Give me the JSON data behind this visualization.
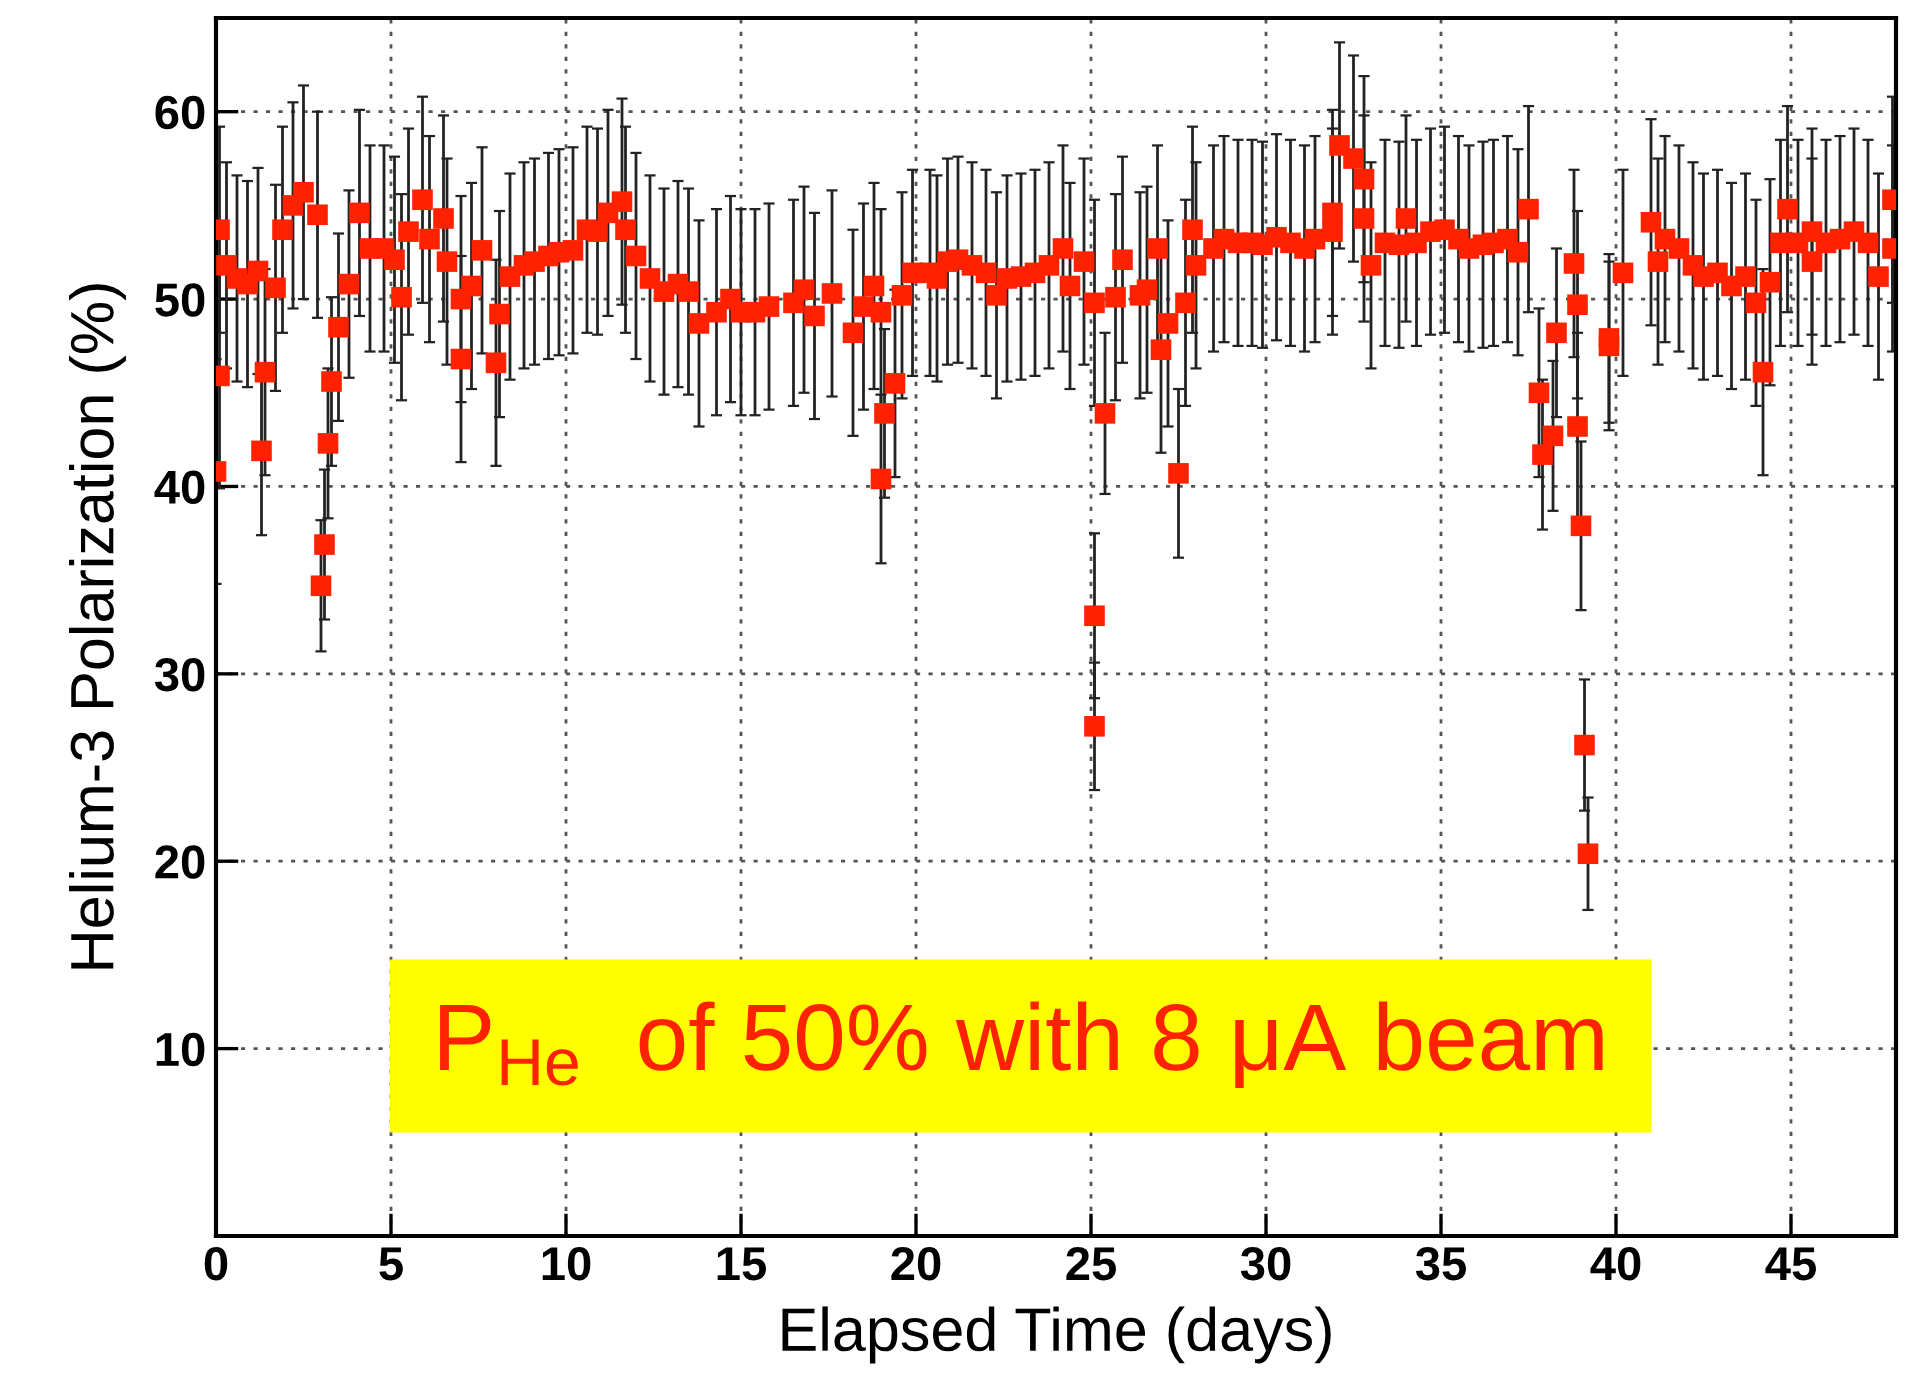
{
  "chart_data": {
    "type": "scatter",
    "xlabel": "Elapsed Time (days)",
    "ylabel": "Helium-3 Polarization (%)",
    "annotations": [
      "P$_{He}$  of 50% with 8 μA beam"
    ],
    "xlim": [
      0,
      48
    ],
    "xticks": [
      0,
      5,
      10,
      15,
      20,
      25,
      30,
      35,
      40,
      45
    ],
    "ylim": [
      0,
      65
    ],
    "yticks": [
      10,
      20,
      30,
      40,
      50,
      60
    ],
    "grid": true,
    "marker": "square",
    "series": [
      {
        "color": "#ff2200",
        "x": [
          0.0,
          0.1,
          0.1,
          0.3,
          0.6,
          0.9,
          1.2,
          1.4,
          1.3,
          1.7,
          1.9,
          2.2,
          2.5,
          2.9,
          3.0,
          3.1,
          3.2,
          3.3,
          3.5,
          3.8,
          4.1,
          4.4,
          4.8,
          5.1,
          5.3,
          5.5,
          5.9,
          6.1,
          6.5,
          6.6,
          7.0,
          7.0,
          7.3,
          7.6,
          8.0,
          8.1,
          8.4,
          8.8,
          9.1,
          9.5,
          9.8,
          10.2,
          10.6,
          10.9,
          11.2,
          11.6,
          11.7,
          12.0,
          12.4,
          12.8,
          13.2,
          13.5,
          13.8,
          14.3,
          14.7,
          15.0,
          15.4,
          15.8,
          16.5,
          16.8,
          17.1,
          17.6,
          18.2,
          18.5,
          18.8,
          19.0,
          19.0,
          19.1,
          19.4,
          19.6,
          19.9,
          20.4,
          20.6,
          20.9,
          21.2,
          21.6,
          22.0,
          22.3,
          22.6,
          23.0,
          23.4,
          23.8,
          24.2,
          24.4,
          24.8,
          25.1,
          25.1,
          25.1,
          25.4,
          25.7,
          25.9,
          26.4,
          26.6,
          26.9,
          27.0,
          27.2,
          27.5,
          27.7,
          27.9,
          28.0,
          28.5,
          28.8,
          29.2,
          29.6,
          29.9,
          30.3,
          30.7,
          31.1,
          31.4,
          31.9,
          31.9,
          32.1,
          32.5,
          32.8,
          32.8,
          33.0,
          33.4,
          33.8,
          34.0,
          34.3,
          34.7,
          35.1,
          35.5,
          35.8,
          36.2,
          36.5,
          36.9,
          37.2,
          37.5,
          37.8,
          37.9,
          38.2,
          38.3,
          38.8,
          38.9,
          38.9,
          39.0,
          39.1,
          39.2,
          39.8,
          39.8,
          40.2,
          41.0,
          41.2,
          41.4,
          41.8,
          42.2,
          42.5,
          42.9,
          43.3,
          43.7,
          44.0,
          44.2,
          44.4,
          44.7,
          44.9,
          45.2,
          45.6,
          45.6,
          46.0,
          46.4,
          46.8,
          47.2,
          47.5,
          47.9,
          47.9
        ],
        "values": [
          40.8,
          45.9,
          53.7,
          51.8,
          51.1,
          50.8,
          51.5,
          46.1,
          41.9,
          50.6,
          53.7,
          55.0,
          55.7,
          54.5,
          34.7,
          36.9,
          42.3,
          45.6,
          48.5,
          50.8,
          54.6,
          52.7,
          52.7,
          52.1,
          50.1,
          53.6,
          55.3,
          53.2,
          54.3,
          52.0,
          50.0,
          46.8,
          50.7,
          52.6,
          46.6,
          49.2,
          51.2,
          51.8,
          52.0,
          52.3,
          52.5,
          52.6,
          53.7,
          53.6,
          54.6,
          55.2,
          53.7,
          52.3,
          51.1,
          50.4,
          50.8,
          50.4,
          48.7,
          49.3,
          50.0,
          49.3,
          49.3,
          49.6,
          49.8,
          50.5,
          49.1,
          50.3,
          48.2,
          49.6,
          50.7,
          49.3,
          40.4,
          43.9,
          45.5,
          50.2,
          51.4,
          51.4,
          51.1,
          52.0,
          52.1,
          51.8,
          51.4,
          50.2,
          51.1,
          51.2,
          51.4,
          51.8,
          52.7,
          50.7,
          52.0,
          49.8,
          33.1,
          27.2,
          43.9,
          50.1,
          52.1,
          50.2,
          50.5,
          52.7,
          47.3,
          48.7,
          40.7,
          49.8,
          53.7,
          51.8,
          52.7,
          53.2,
          53.0,
          53.0,
          52.9,
          53.3,
          53.0,
          52.7,
          53.2,
          53.6,
          54.6,
          58.2,
          57.5,
          56.4,
          54.3,
          51.8,
          53.0,
          52.9,
          54.3,
          53.0,
          53.6,
          53.7,
          53.2,
          52.7,
          52.9,
          53.0,
          53.2,
          52.5,
          54.8,
          45.0,
          41.7,
          42.7,
          48.2,
          51.9,
          49.7,
          43.2,
          37.9,
          26.2,
          20.4,
          47.9,
          47.5,
          51.4,
          54.1,
          52.0,
          53.2,
          52.7,
          51.8,
          51.2,
          51.4,
          50.7,
          51.2,
          49.8,
          46.1,
          50.9,
          53.0,
          54.8,
          53.0,
          53.6,
          52.0,
          53.0,
          53.2,
          53.6,
          53.0,
          51.2,
          55.3,
          52.7
        ],
        "errors": [
          6,
          6,
          5.5,
          5.5,
          5.5,
          5.5,
          5.5,
          5.5,
          4.5,
          5.5,
          5.5,
          5.5,
          5.7,
          5.5,
          3.5,
          4,
          4,
          4.5,
          5,
          5,
          5.5,
          5.5,
          5.5,
          5.5,
          5.5,
          5.5,
          5.5,
          5.5,
          5.5,
          5.5,
          5.5,
          5.5,
          5.5,
          5.5,
          5.5,
          5.5,
          5.5,
          5.5,
          5.5,
          5.5,
          5.5,
          5.5,
          5.5,
          5.5,
          5.5,
          5.5,
          5.5,
          5.5,
          5.5,
          5.5,
          5.5,
          5.5,
          5.5,
          5.5,
          5.5,
          5.5,
          5.5,
          5.5,
          5.5,
          5.5,
          5.5,
          5.5,
          5.5,
          5.5,
          5.5,
          5.5,
          4.5,
          4.5,
          5,
          5.5,
          5.5,
          5.5,
          5.5,
          5.5,
          5.5,
          5.5,
          5.5,
          5.5,
          5.5,
          5.5,
          5.5,
          5.5,
          5.5,
          5.5,
          5.5,
          5.5,
          4.4,
          3.4,
          4.3,
          5.5,
          5.5,
          5.5,
          5.5,
          5.5,
          5.5,
          5.5,
          4.5,
          5.5,
          5.5,
          5.5,
          5.5,
          5.5,
          5.5,
          5.5,
          5.5,
          5.5,
          5.5,
          5.5,
          5.5,
          5.5,
          5.5,
          5.5,
          5.5,
          5.5,
          5.5,
          5.5,
          5.5,
          5.5,
          5.5,
          5.5,
          5.5,
          5.5,
          5.5,
          5.5,
          5.5,
          5.5,
          5.5,
          5.5,
          5.5,
          4.5,
          4,
          4,
          4.5,
          5,
          5,
          5,
          4.5,
          3.5,
          3,
          4.5,
          4.5,
          5.5,
          5.5,
          5.5,
          5.5,
          5.5,
          5.5,
          5.5,
          5.5,
          5.5,
          5.5,
          5.5,
          5.5,
          5.5,
          5.5,
          5.5,
          5.5,
          5.5,
          5.5,
          5.5,
          5.5,
          5.5,
          5.5,
          5.5,
          5.5,
          5.5
        ]
      }
    ]
  }
}
